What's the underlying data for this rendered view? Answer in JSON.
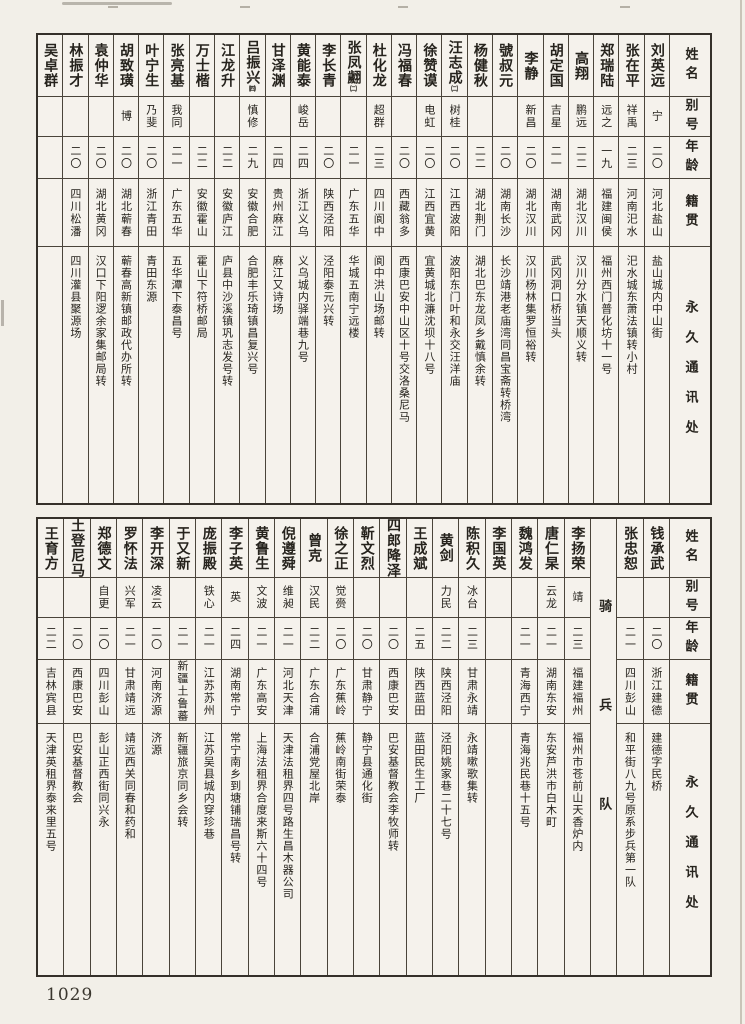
{
  "page_number": "1029",
  "headers": {
    "name": "姓名",
    "alias": "别号",
    "age": "年龄",
    "origin": "籍贯",
    "address": "永久通讯处"
  },
  "section_divider": "骑兵队",
  "table_top": {
    "people": [
      {
        "name": "刘英远",
        "note": "",
        "alias": "宁",
        "age": "二〇",
        "origin": "河北盐山",
        "address": "盐山城内中山街"
      },
      {
        "name": "张在平",
        "note": "",
        "alias": "祥禹",
        "age": "二三",
        "origin": "河南汜水",
        "address": "汜水城东萧法镇转小村"
      },
      {
        "name": "郑瑞陆",
        "note": "",
        "alias": "远之",
        "age": "一九",
        "origin": "福建闽侯",
        "address": "福州西门普化坊十一号"
      },
      {
        "name": "高翔",
        "note": "",
        "alias": "鹏远",
        "age": "二二",
        "origin": "湖北汉川",
        "address": "汉川分水镇天顺义转"
      },
      {
        "name": "胡定国",
        "note": "",
        "alias": "吉星",
        "age": "二一",
        "origin": "湖南武冈",
        "address": "武冈洞口桥当头"
      },
      {
        "name": "李静",
        "note": "",
        "alias": "新昌",
        "age": "二〇",
        "origin": "湖北汉川",
        "address": "汉川杨林集罗恒裕转"
      },
      {
        "name": "號叔元",
        "note": "",
        "alias": "",
        "age": "二〇",
        "origin": "湖南长沙",
        "address": "长沙靖港老庙湾同昌宝斋转桥湾"
      },
      {
        "name": "杨健秋",
        "note": "",
        "alias": "",
        "age": "二二",
        "origin": "湖北荆门",
        "address": "湖北巴东龙凤乡戴慎余转"
      },
      {
        "name": "汪志成",
        "note": "㈡",
        "alias": "树桂",
        "age": "二〇",
        "origin": "江西波阳",
        "address": "波阳东门叶和永交汪洋庙"
      },
      {
        "name": "徐赞谟",
        "note": "",
        "alias": "电虹",
        "age": "二〇",
        "origin": "江西宜黄",
        "address": "宜黄城北濂沈坝十八号"
      },
      {
        "name": "冯福春",
        "note": "",
        "alias": "",
        "age": "二〇",
        "origin": "西藏翁多",
        "address": "西康巴安中山区十号交洛桑尼马"
      },
      {
        "name": "杜化龙",
        "note": "",
        "alias": "超群",
        "age": "二三",
        "origin": "四川阆中",
        "address": "阆中洪山场邮转"
      },
      {
        "name": "张凤翽",
        "note": "㈡",
        "alias": "",
        "age": "二一",
        "origin": "广东五华",
        "address": "华城五南宁远楼"
      },
      {
        "name": "李长青",
        "note": "",
        "alias": "",
        "age": "二〇",
        "origin": "陕西泾阳",
        "address": "泾阳泰元兴转"
      },
      {
        "name": "黄能泰",
        "note": "",
        "alias": "峻岳",
        "age": "二四",
        "origin": "浙江义乌",
        "address": "义乌城内驿端巷九号"
      },
      {
        "name": "甘泽渊",
        "note": "",
        "alias": "",
        "age": "二四",
        "origin": "贵州麻江",
        "address": "麻江又诗场"
      },
      {
        "name": "吕振兴",
        "note": "㈣",
        "alias": "慎修",
        "age": "二九",
        "origin": "安徽合肥",
        "address": "合肥丰乐琦镇昌复兴号"
      },
      {
        "name": "江龙升",
        "note": "",
        "alias": "",
        "age": "二二",
        "origin": "安徽庐江",
        "address": "庐县中沙溪镇巩志发号转"
      },
      {
        "name": "万士楷",
        "note": "",
        "alias": "",
        "age": "二二",
        "origin": "安徽霍山",
        "address": "霍山下符桥邮局"
      },
      {
        "name": "张亮基",
        "note": "",
        "alias": "我同",
        "age": "二一",
        "origin": "广东五华",
        "address": "五华潭下泰昌号"
      },
      {
        "name": "叶宁生",
        "note": "",
        "alias": "乃斐",
        "age": "二〇",
        "origin": "浙江青田",
        "address": "青田东源"
      },
      {
        "name": "胡致璜",
        "note": "",
        "alias": "博",
        "age": "二〇",
        "origin": "湖北蕲春",
        "address": "蕲春高新镇邮政代办所转"
      },
      {
        "name": "袁仲华",
        "note": "",
        "alias": "",
        "age": "二〇",
        "origin": "湖北黄冈",
        "address": "汉口下阳逻余家集邮局转"
      },
      {
        "name": "林振才",
        "note": "",
        "alias": "",
        "age": "二〇",
        "origin": "四川松潘",
        "address": "四川灌县聚源场"
      },
      {
        "name": "吴卓群",
        "note": "",
        "alias": "",
        "age": "",
        "origin": "",
        "address": ""
      }
    ]
  },
  "table_bottom": {
    "people_right_of_divider": [
      {
        "name": "钱承武",
        "note": "",
        "alias": "",
        "age": "二〇",
        "origin": "浙江建德",
        "address": "建德字民桥"
      },
      {
        "name": "张忠恕",
        "note": "",
        "alias": "",
        "age": "二一",
        "origin": "四川彭山",
        "address": "和平街八九号原系步兵第一队"
      }
    ],
    "people_left_of_divider": [
      {
        "name": "李扬荣",
        "note": "",
        "alias": "靖",
        "age": "二三",
        "origin": "福建福州",
        "address": "福州市苍前山天香炉内"
      },
      {
        "name": "唐仁杲",
        "note": "",
        "alias": "云龙",
        "age": "二一",
        "origin": "湖南东安",
        "address": "东安芦洪市白木町"
      },
      {
        "name": "魏鸿发",
        "note": "",
        "alias": "",
        "age": "二一",
        "origin": "青海西宁",
        "address": "青海兆民巷十五号"
      },
      {
        "name": "李国英",
        "note": "",
        "alias": "",
        "age": "",
        "origin": "",
        "address": ""
      },
      {
        "name": "陈积久",
        "note": "",
        "alias": "冰台",
        "age": "二三",
        "origin": "甘肃永靖",
        "address": "永靖嗽歌集转"
      },
      {
        "name": "黄剑",
        "note": "",
        "alias": "力民",
        "age": "二二",
        "origin": "陕西泾阳",
        "address": "泾阳姚家巷二十七号"
      },
      {
        "name": "王成斌",
        "note": "",
        "alias": "",
        "age": "二五",
        "origin": "陕西蓝田",
        "address": "蓝田民生工厂"
      },
      {
        "name": "四郎降泽",
        "note": "",
        "alias": "",
        "age": "二〇",
        "origin": "西康巴安",
        "address": "巴安基督教会李牧师转"
      },
      {
        "name": "靳文烈",
        "note": "",
        "alias": "",
        "age": "二〇",
        "origin": "甘肃静宁",
        "address": "静宁县通化街"
      },
      {
        "name": "徐之正",
        "note": "",
        "alias": "觉赍",
        "age": "二〇",
        "origin": "广东蕉岭",
        "address": "蕉岭南街荣泰"
      },
      {
        "name": "曾克",
        "note": "",
        "alias": "汉民",
        "age": "二二",
        "origin": "广东合浦",
        "address": "合浦党屋北岸"
      },
      {
        "name": "倪遵舜",
        "note": "",
        "alias": "维昶",
        "age": "二一",
        "origin": "河北天津",
        "address": "天津法租界四号路生昌木器公司"
      },
      {
        "name": "黄鲁生",
        "note": "",
        "alias": "文波",
        "age": "二一",
        "origin": "广东高安",
        "address": "上海法租界合度来斯六十四号"
      },
      {
        "name": "李子英",
        "note": "",
        "alias": "英",
        "age": "二四",
        "origin": "湖南常宁",
        "address": "常宁南乡到塘铺瑞昌号转"
      },
      {
        "name": "庞振殿",
        "note": "",
        "alias": "铁心",
        "age": "二一",
        "origin": "江苏苏州",
        "address": "江苏吴县城内穿珍巷"
      },
      {
        "name": "于又新",
        "note": "",
        "alias": "",
        "age": "二一",
        "origin": "新疆土鲁蕃",
        "address": "新疆旅京同乡会转"
      },
      {
        "name": "李开深",
        "note": "",
        "alias": "凌云",
        "age": "二〇",
        "origin": "河南济源",
        "address": "济源"
      },
      {
        "name": "罗怀法",
        "note": "",
        "alias": "兴军",
        "age": "二一",
        "origin": "甘肃靖远",
        "address": "靖远西关同春和药和"
      },
      {
        "name": "郑德文",
        "note": "",
        "alias": "自更",
        "age": "二〇",
        "origin": "四川彭山",
        "address": "彭山正西街同兴永"
      },
      {
        "name": "土登尼马",
        "note": "",
        "alias": "",
        "age": "二〇",
        "origin": "西康巴安",
        "address": "巴安基督教会"
      },
      {
        "name": "王育方",
        "note": "",
        "alias": "",
        "age": "二二",
        "origin": "吉林宾县",
        "address": "天津英租界泰来里五号"
      }
    ]
  }
}
